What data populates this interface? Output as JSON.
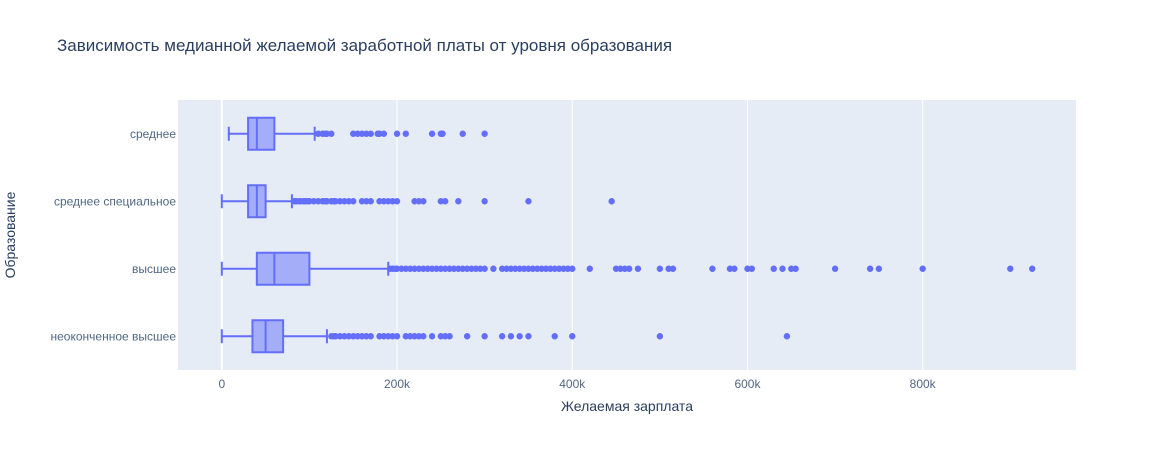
{
  "chart_data": {
    "type": "box",
    "orientation": "horizontal",
    "title": "Зависимость медианной желаемой заработной платы от уровня образования",
    "xlabel": "Желаемая зарплата",
    "ylabel": "Образование",
    "xlim": [
      -50000,
      975000
    ],
    "xticks": [
      {
        "value": 0,
        "label": "0"
      },
      {
        "value": 200000,
        "label": "200k"
      },
      {
        "value": 400000,
        "label": "400k"
      },
      {
        "value": 600000,
        "label": "600k"
      },
      {
        "value": 800000,
        "label": "800k"
      }
    ],
    "grid": true,
    "colors": {
      "marker": "#636efa",
      "plot_bg": "#e5ecf6",
      "grid": "#ffffff",
      "text": "#2a3f5f",
      "tick_text": "#506784"
    },
    "categories": [
      {
        "name": "среднее",
        "min": 8000,
        "q1": 30000,
        "median": 40000,
        "q3": 60000,
        "upper_fence": 106000,
        "outliers": [
          110000,
          115000,
          118000,
          120000,
          125000,
          150000,
          155000,
          160000,
          165000,
          170000,
          178000,
          180000,
          185000,
          200000,
          210000,
          240000,
          250000,
          252000,
          275000,
          300000
        ]
      },
      {
        "name": "среднее специальное",
        "min": 0,
        "q1": 30000,
        "median": 40000,
        "q3": 50000,
        "upper_fence": 80000,
        "outliers": [
          83000,
          85000,
          88000,
          90000,
          93000,
          95000,
          98000,
          100000,
          105000,
          110000,
          115000,
          118000,
          120000,
          125000,
          128000,
          130000,
          135000,
          140000,
          145000,
          150000,
          160000,
          165000,
          170000,
          180000,
          185000,
          190000,
          195000,
          200000,
          220000,
          225000,
          230000,
          250000,
          255000,
          270000,
          300000,
          350000,
          445000
        ]
      },
      {
        "name": "высшее",
        "min": 0,
        "q1": 40000,
        "median": 60000,
        "q3": 100000,
        "upper_fence": 190000,
        "outliers": [
          192000,
          195000,
          198000,
          200000,
          205000,
          210000,
          215000,
          220000,
          225000,
          230000,
          235000,
          240000,
          245000,
          250000,
          255000,
          260000,
          265000,
          270000,
          275000,
          280000,
          285000,
          290000,
          295000,
          300000,
          310000,
          320000,
          325000,
          330000,
          335000,
          340000,
          345000,
          350000,
          355000,
          360000,
          365000,
          370000,
          375000,
          380000,
          385000,
          390000,
          395000,
          400000,
          420000,
          450000,
          455000,
          460000,
          465000,
          475000,
          500000,
          510000,
          515000,
          560000,
          580000,
          585000,
          600000,
          605000,
          630000,
          640000,
          650000,
          655000,
          700000,
          740000,
          750000,
          800000,
          900000,
          925000
        ]
      },
      {
        "name": "неоконченное высшее",
        "min": 0,
        "q1": 35000,
        "median": 50000,
        "q3": 70000,
        "upper_fence": 120000,
        "outliers": [
          125000,
          128000,
          130000,
          135000,
          140000,
          145000,
          150000,
          155000,
          160000,
          165000,
          170000,
          180000,
          185000,
          190000,
          195000,
          200000,
          210000,
          215000,
          220000,
          225000,
          230000,
          240000,
          250000,
          255000,
          260000,
          280000,
          300000,
          320000,
          330000,
          340000,
          350000,
          380000,
          400000,
          500000,
          645000
        ]
      }
    ]
  }
}
